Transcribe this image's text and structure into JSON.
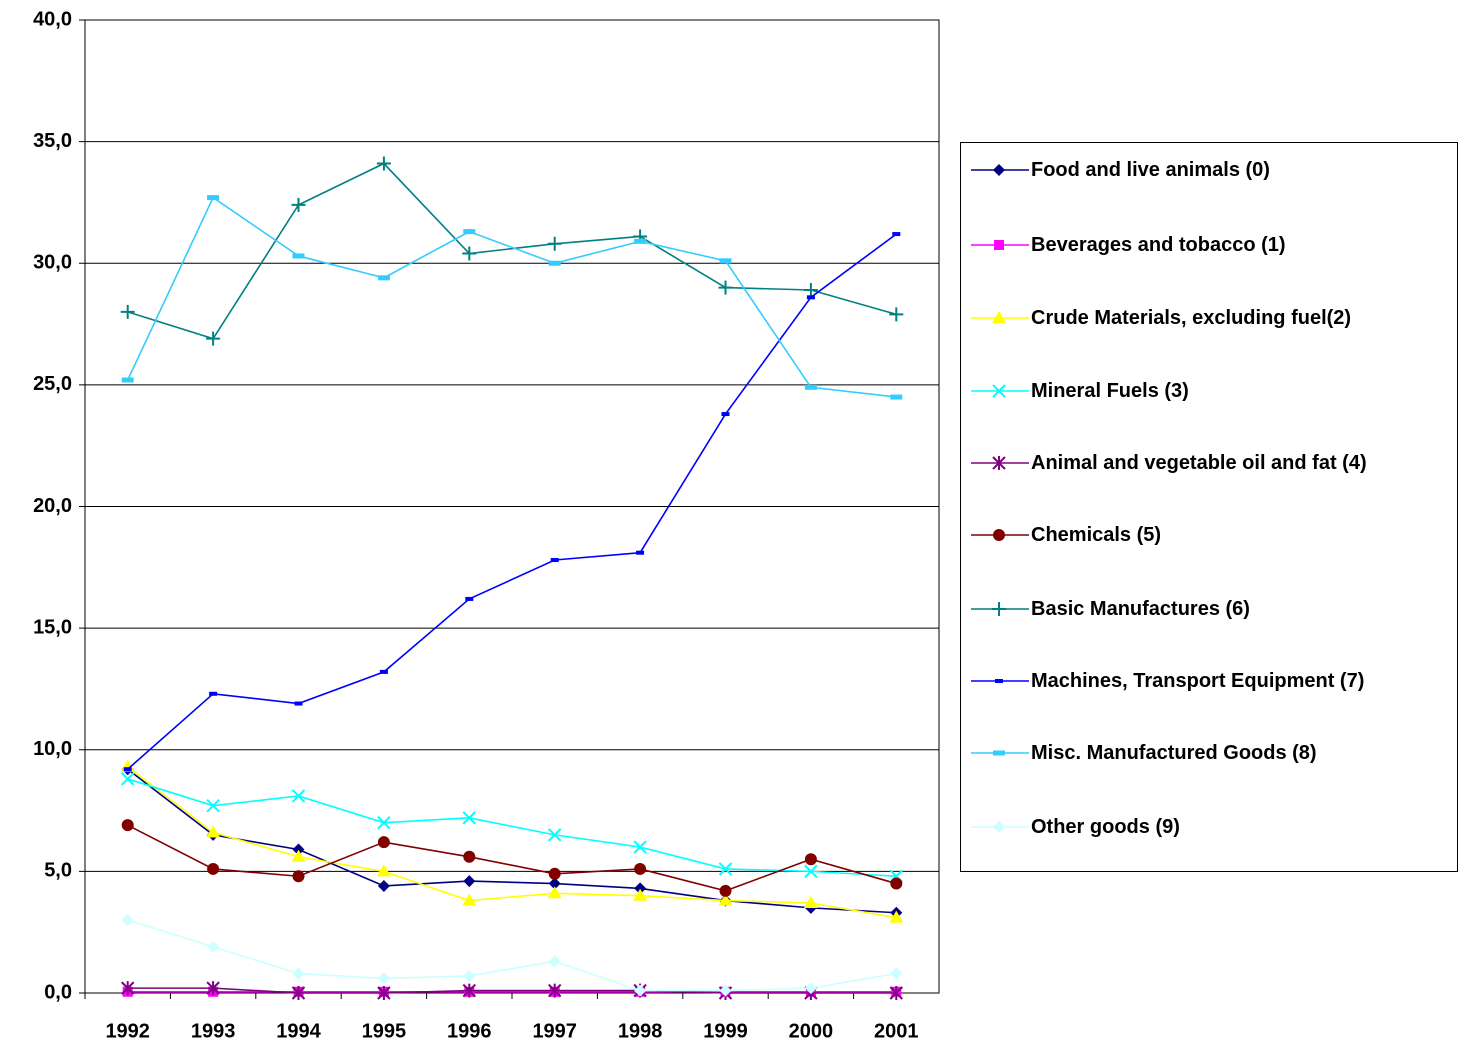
{
  "chart_data": {
    "type": "line",
    "categories": [
      "1992",
      "1993",
      "1994",
      "1995",
      "1996",
      "1997",
      "1998",
      "1999",
      "2000",
      "2001"
    ],
    "ylim": [
      0,
      40
    ],
    "yticks": [
      {
        "value": 0,
        "label": "0,0"
      },
      {
        "value": 5,
        "label": "5,0"
      },
      {
        "value": 10,
        "label": "10,0"
      },
      {
        "value": 15,
        "label": "15,0"
      },
      {
        "value": 20,
        "label": "20,0"
      },
      {
        "value": 25,
        "label": "25,0"
      },
      {
        "value": 30,
        "label": "30,0"
      },
      {
        "value": 35,
        "label": "35,0"
      },
      {
        "value": 40,
        "label": "40,0"
      }
    ],
    "grid": true,
    "legend": "right",
    "series": [
      {
        "name": "Food and live animals (0)",
        "color": "#000080",
        "marker": "diamond",
        "values": [
          9.2,
          6.5,
          5.9,
          4.4,
          4.6,
          4.5,
          4.3,
          3.8,
          3.5,
          3.3
        ]
      },
      {
        "name": "Beverages and tobacco (1)",
        "color": "#ff00ff",
        "marker": "square",
        "values": [
          0.05,
          0.05,
          0.05,
          0.05,
          0.05,
          0.05,
          0.05,
          0.05,
          0.05,
          0.05
        ]
      },
      {
        "name": "Crude Materials, excluding fuel(2)",
        "color": "#ffff00",
        "marker": "triangle",
        "values": [
          9.3,
          6.6,
          5.6,
          5.0,
          3.8,
          4.1,
          4.0,
          3.8,
          3.7,
          3.1
        ]
      },
      {
        "name": "Mineral Fuels (3)",
        "color": "#00ffff",
        "marker": "x",
        "values": [
          8.8,
          7.7,
          8.1,
          7.0,
          7.2,
          6.5,
          6.0,
          5.1,
          5.0,
          4.8
        ]
      },
      {
        "name": "Animal and vegetable oil and fat (4)",
        "color": "#800080",
        "marker": "star",
        "values": [
          0.2,
          0.2,
          0.0,
          0.0,
          0.1,
          0.1,
          0.1,
          0.0,
          0.0,
          0.0
        ]
      },
      {
        "name": "Chemicals (5)",
        "color": "#800000",
        "marker": "circle",
        "values": [
          6.9,
          5.1,
          4.8,
          6.2,
          5.6,
          4.9,
          5.1,
          4.2,
          5.5,
          4.5
        ]
      },
      {
        "name": "Basic Manufactures (6)",
        "color": "#008080",
        "marker": "plus",
        "values": [
          28.0,
          26.9,
          32.4,
          34.1,
          30.4,
          30.8,
          31.1,
          29.0,
          28.9,
          27.9
        ]
      },
      {
        "name": "Machines, Transport Equipment (7)",
        "color": "#0000ff",
        "marker": "dash",
        "values": [
          9.2,
          12.3,
          11.9,
          13.2,
          16.2,
          17.8,
          18.1,
          23.8,
          28.6,
          31.2
        ]
      },
      {
        "name": "Misc. Manufactured Goods (8)",
        "color": "#33ccff",
        "marker": "bar",
        "values": [
          25.2,
          32.7,
          30.3,
          29.4,
          31.3,
          30.0,
          30.9,
          30.1,
          24.9,
          24.5
        ]
      },
      {
        "name": "Other goods (9)",
        "color": "#ccffff",
        "marker": "diamond",
        "values": [
          3.0,
          1.9,
          0.8,
          0.6,
          0.7,
          1.3,
          0.1,
          0.1,
          0.2,
          0.8
        ]
      }
    ]
  }
}
